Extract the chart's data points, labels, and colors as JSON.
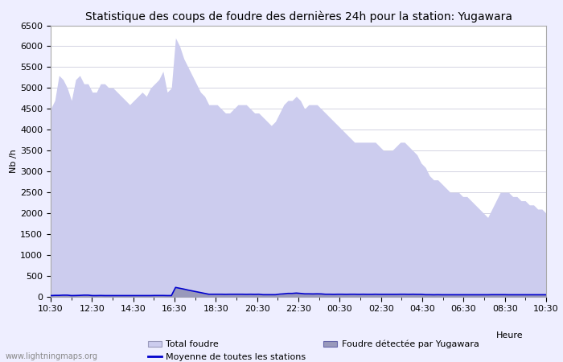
{
  "title": "Statistique des coups de foudre des dernières 24h pour la station: Yugawara",
  "xlabel": "Heure",
  "ylabel": "Nb /h",
  "ylim": [
    0,
    6500
  ],
  "yticks": [
    0,
    500,
    1000,
    1500,
    2000,
    2500,
    3000,
    3500,
    4000,
    4500,
    5000,
    5500,
    6000,
    6500
  ],
  "xtick_labels": [
    "10:30",
    "12:30",
    "14:30",
    "16:30",
    "18:30",
    "20:30",
    "22:30",
    "00:30",
    "02:30",
    "04:30",
    "06:30",
    "08:30",
    "10:30"
  ],
  "watermark": "www.lightningmaps.org",
  "legend": [
    {
      "label": "Total foudre",
      "color": "#ccd0f0",
      "type": "fill"
    },
    {
      "label": "Moyenne de toutes les stations",
      "color": "#0000cc",
      "type": "line"
    },
    {
      "label": "Foudre détectée par Yugawara",
      "color": "#8888dd",
      "type": "fill"
    }
  ],
  "total_foudre": [
    4500,
    4700,
    5300,
    5200,
    5000,
    4700,
    5200,
    5300,
    5100,
    5100,
    4900,
    4900,
    5100,
    5100,
    5000,
    5000,
    4900,
    4800,
    4700,
    4600,
    4700,
    4800,
    4900,
    4800,
    5000,
    5100,
    5200,
    5400,
    4900,
    5000,
    6200,
    6000,
    5700,
    5500,
    5300,
    5100,
    4900,
    4800,
    4600,
    4600,
    4600,
    4500,
    4400,
    4400,
    4500,
    4600,
    4600,
    4600,
    4500,
    4400,
    4400,
    4300,
    4200,
    4100,
    4200,
    4400,
    4600,
    4700,
    4700,
    4800,
    4700,
    4500,
    4600,
    4600,
    4600,
    4500,
    4400,
    4300,
    4200,
    4100,
    4000,
    3900,
    3800,
    3700,
    3700,
    3700,
    3700,
    3700,
    3700,
    3600,
    3500,
    3500,
    3500,
    3600,
    3700,
    3700,
    3600,
    3500,
    3400,
    3200,
    3100,
    2900,
    2800,
    2800,
    2700,
    2600,
    2500,
    2500,
    2500,
    2400,
    2400,
    2300,
    2200,
    2100,
    2000,
    1900,
    2100,
    2300,
    2500,
    2500,
    2500,
    2400,
    2400,
    2300,
    2300,
    2200,
    2200,
    2100,
    2100,
    2000
  ],
  "yugawara": [
    30,
    30,
    30,
    40,
    40,
    30,
    30,
    30,
    40,
    40,
    30,
    30,
    30,
    30,
    30,
    30,
    30,
    30,
    30,
    30,
    30,
    30,
    30,
    30,
    30,
    30,
    30,
    30,
    30,
    30,
    220,
    200,
    180,
    160,
    140,
    120,
    100,
    80,
    60,
    60,
    60,
    60,
    60,
    60,
    60,
    60,
    60,
    60,
    60,
    60,
    60,
    50,
    50,
    50,
    50,
    60,
    70,
    80,
    80,
    90,
    80,
    70,
    70,
    70,
    70,
    70,
    60,
    60,
    60,
    60,
    60,
    60,
    60,
    60,
    60,
    60,
    60,
    60,
    60,
    60,
    60,
    60,
    60,
    60,
    60,
    60,
    60,
    60,
    60,
    60,
    50,
    50,
    50,
    50,
    50,
    50,
    50,
    50,
    50,
    50,
    50,
    50,
    50,
    50,
    50,
    50,
    50,
    50,
    50,
    50,
    50,
    50,
    50,
    50,
    50,
    50,
    50,
    50,
    50,
    50
  ],
  "moyenne": [
    30,
    35,
    35,
    40,
    40,
    30,
    32,
    35,
    40,
    40,
    30,
    30,
    32,
    30,
    30,
    30,
    30,
    30,
    30,
    30,
    30,
    30,
    30,
    30,
    30,
    32,
    32,
    32,
    30,
    30,
    225,
    205,
    185,
    162,
    142,
    122,
    102,
    82,
    62,
    62,
    62,
    62,
    60,
    62,
    62,
    62,
    62,
    60,
    62,
    60,
    62,
    52,
    52,
    52,
    52,
    65,
    72,
    82,
    82,
    90,
    82,
    72,
    72,
    70,
    72,
    70,
    62,
    62,
    60,
    62,
    62,
    60,
    62,
    62,
    60,
    62,
    60,
    60,
    62,
    60,
    60,
    60,
    60,
    60,
    62,
    62,
    60,
    62,
    60,
    60,
    52,
    52,
    50,
    52,
    50,
    50,
    50,
    50,
    50,
    50,
    50,
    50,
    50,
    50,
    50,
    50,
    52,
    52,
    52,
    52,
    50,
    50,
    50,
    50,
    50,
    50,
    50,
    50,
    50,
    50
  ],
  "bg_color": "#eeeeff",
  "plot_bg_color": "#ffffff",
  "fill_total_color": "#ccccee",
  "fill_yugawara_color": "#9999bb",
  "line_moyenne_color": "#0000cc",
  "title_fontsize": 10,
  "axis_fontsize": 8,
  "tick_fontsize": 8
}
